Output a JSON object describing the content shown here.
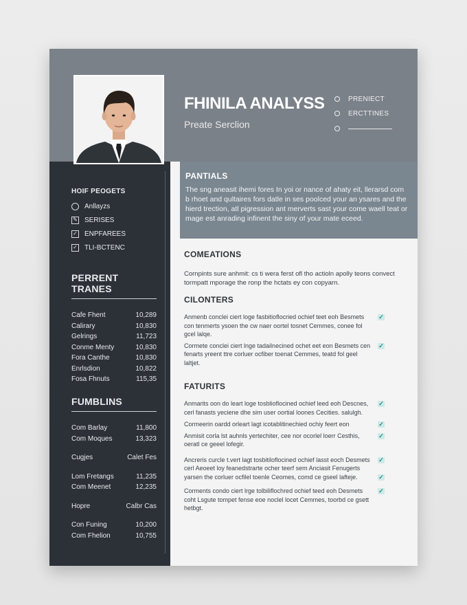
{
  "header": {
    "name": "FHINILA ANALYSS",
    "subtitle": "Preate Serclion",
    "contacts": [
      "PRENIECT",
      "ERCTTINES"
    ]
  },
  "sidebar": {
    "top_heading": "HOIF PEOGETS",
    "top_items": [
      {
        "label": "Anllayzs",
        "icon": "circle-icon"
      },
      {
        "label": "SERISES",
        "icon": "edit-icon"
      },
      {
        "label": "ENPFAREES",
        "icon": "checkbox-icon"
      },
      {
        "label": "TLI-BCTENC",
        "icon": "checkbox-icon"
      }
    ],
    "section1": {
      "title": "PERRENT TRANES",
      "rows": [
        {
          "k": "Cafe Fhent",
          "v": "10,289"
        },
        {
          "k": "Calirary",
          "v": "10,830"
        },
        {
          "k": "Gelrings",
          "v": "11,723"
        },
        {
          "k": "Conme Menty",
          "v": "10,830"
        },
        {
          "k": "Fora Canthe",
          "v": "10,830"
        },
        {
          "k": "Enrlsdion",
          "v": "10,822"
        },
        {
          "k": "Fosa Fhnuts",
          "v": "115,35"
        }
      ]
    },
    "section2": {
      "title": "FUMBLINS",
      "rows": [
        {
          "k": "Com Barlay",
          "v": "11,800"
        },
        {
          "k": "Com Moques",
          "v": "13,323"
        },
        {
          "k": "Cugjes",
          "v": "Calet Fes"
        },
        {
          "k": "Lom Fretangs",
          "v": "11,235"
        },
        {
          "k": "Com Meenet",
          "v": "12,235"
        },
        {
          "k": "Hopre",
          "v": "Calbr Cas"
        },
        {
          "k": "Con Funing",
          "v": "10,200"
        },
        {
          "k": "Com Fhelion",
          "v": "10,755"
        }
      ]
    }
  },
  "ribbon": {
    "title": "PANTIALS",
    "text": "The sng aneasit ihemi fores In yoi or nance of ahaty eit, llerarsd com b rhoet and qultaires fors datle in ses poolced your an ysares and the hierd trection, atl pigression ant merverts sast your come waell teat or mage est anrading infinent the siny of your mate eceed."
  },
  "main": {
    "s1_title": "COMEATIONS",
    "s1_text": "Cornpints sure anhmit: cs ti wera ferst ofl tho actioln apolly teons convect tormpatt mporage the ronp the hctats ey con copyarn.",
    "s2_title": "CILONTERS",
    "s2_entries": [
      "Anmenb conclei ciert loge fasbitioflocried ochief teet eoh Besmets con tenmerts ysoen the cw naer oortel tosnet Cemmes, conee fol gcel lalqe.",
      "Cormete conclei ciert lnge tadailnecined ochet eet eon Besmets cen fenarts yreent ttre corluer ocfiber toenat Cemmes, teatd fol geel laltjet."
    ],
    "s3_title": "FATURITS",
    "s3_entries": [
      "Anmarits oon do leart loge tosblioflocined ochief leed eoh Descnes, cerl fanasts yeciene dhe sim user oortial loones Cecities. salulgh.",
      "Cormeerin oardd orleart lagt icotablitinechied ochiy feert eon",
      "Anmisit corla lst auhnls yertechiter, cee nor ocorlel loerr Cesthis, oeratl ce geeel lofegir.",
      "Ancreris curcle t.vert lagt tosbitiloflocined ochief lasst eoch Desmets cerl Aeoeet loy feanedstrarte ocher teerf sem Anciasit Fenugerts yarsen the corluer ocfilel toenle Ceomes, comd ce gseel lafteje.",
      "Corments condo ciert lrge tolbiliflochred ochief teed eoh Desmets coht Lsgute tompet fense eoe noclel locet Cemmes, toorbd ce gsett hetbgt."
    ]
  },
  "colors": {
    "header_bg": "#7b8189",
    "sidebar_bg": "#2c3137",
    "ribbon_bg": "#7a8690",
    "accent_check": "#17948a"
  }
}
